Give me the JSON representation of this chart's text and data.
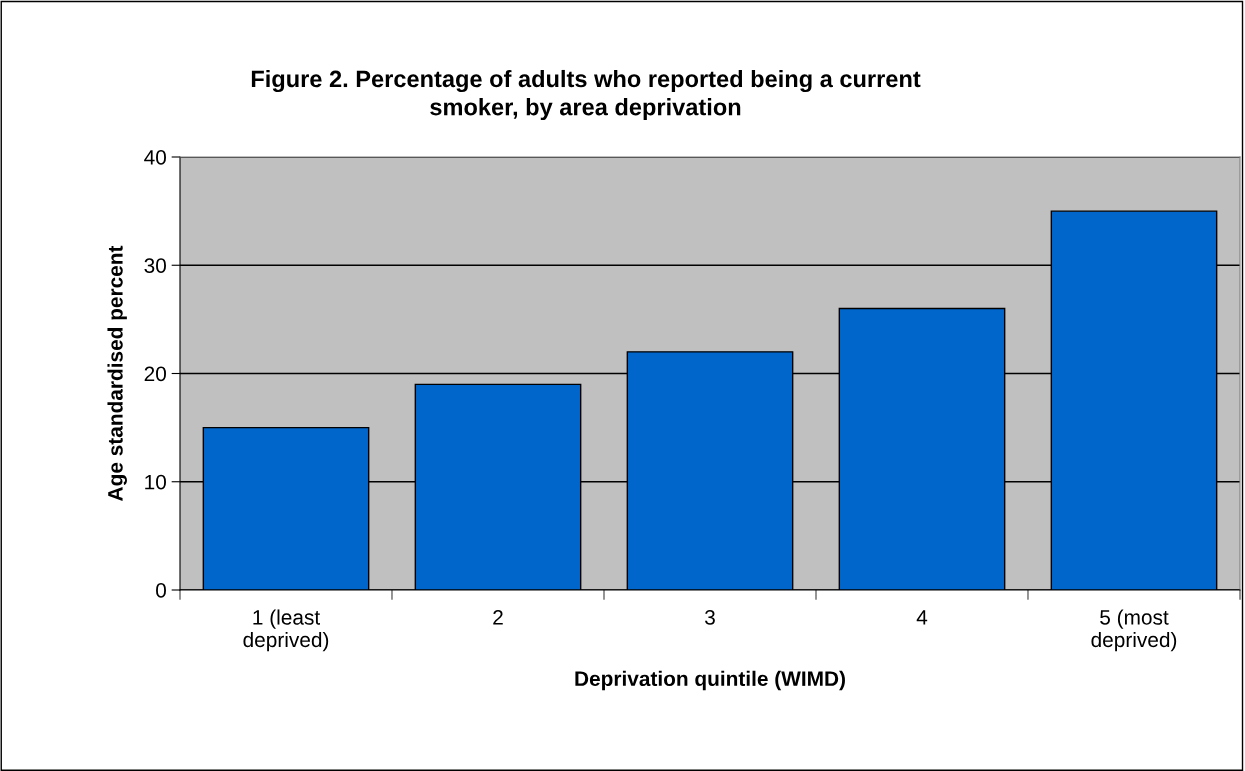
{
  "chart_data": {
    "type": "bar",
    "title": "Figure 2. Percentage of adults who reported being a current\nsmoker, by area deprivation",
    "xlabel": "Deprivation quintile (WIMD)",
    "ylabel": "Age standardised percent",
    "categories": [
      "1 (least\ndeprived)",
      "2",
      "3",
      "4",
      "5 (most\ndeprived)"
    ],
    "values": [
      15,
      19,
      22,
      26,
      35
    ],
    "color": "#0066cc",
    "ylim": [
      0,
      40
    ],
    "yticks": [
      0,
      10,
      20,
      30,
      40
    ],
    "grid": "y",
    "legend": false
  }
}
